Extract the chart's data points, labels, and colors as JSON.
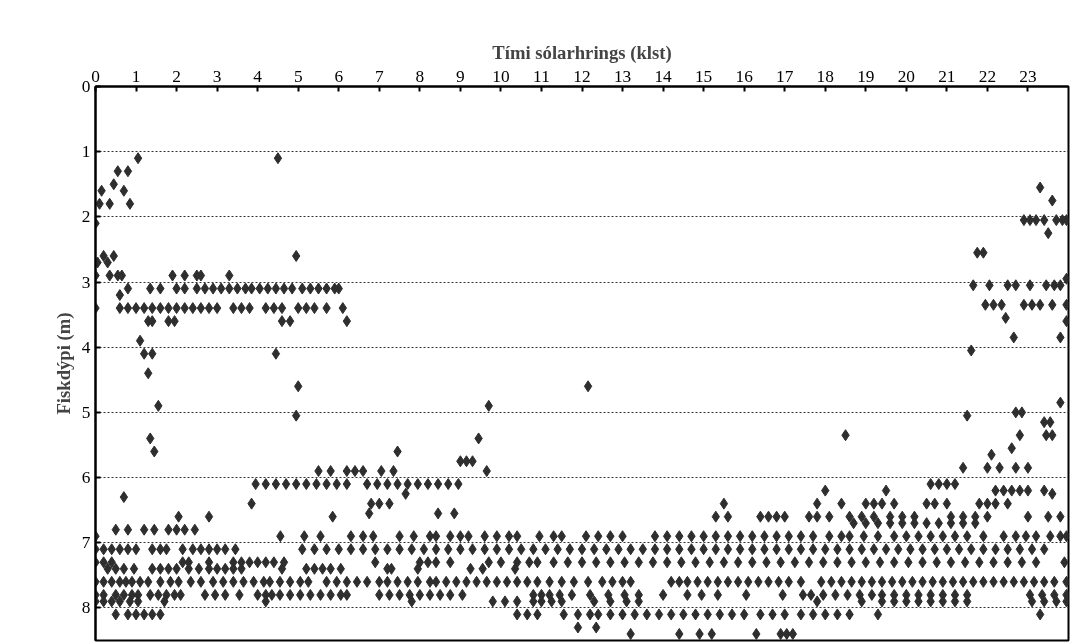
{
  "chart_data": {
    "type": "scatter",
    "xlabel": "Tími sólarhrings (klst)",
    "ylabel": "Fiskdýpi (m)",
    "xlim": [
      0,
      24
    ],
    "ylim": [
      8.5,
      0
    ],
    "xticks": [
      0,
      1,
      2,
      3,
      4,
      5,
      6,
      7,
      8,
      9,
      10,
      11,
      12,
      13,
      14,
      15,
      16,
      17,
      18,
      19,
      20,
      21,
      22,
      23
    ],
    "yticks": [
      0,
      1,
      2,
      3,
      4,
      5,
      6,
      7,
      8
    ],
    "grid": "y",
    "marker": "diamond",
    "series": [
      {
        "color": "#2e2e2e",
        "x": [
          0.1,
          0.15,
          0.35,
          0.45,
          0.55,
          0.7,
          0.8,
          0.85,
          1.05,
          0.0,
          0.05,
          0.2,
          0.3,
          0.45,
          0.0,
          0.6,
          0.8,
          0.0,
          1.1,
          1.2,
          1.4,
          1.3,
          4.5,
          4.95,
          4.45,
          5.0,
          1.55,
          1.35,
          1.45,
          4.95
        ],
        "values": [
          1.8,
          1.6,
          1.8,
          1.5,
          1.3,
          1.6,
          1.3,
          1.8,
          1.1,
          2.1,
          2.7,
          2.6,
          2.7,
          2.6,
          2.9,
          3.2,
          3.1,
          3.4,
          3.9,
          4.1,
          4.1,
          4.4,
          1.1,
          2.6,
          4.1,
          4.6,
          4.9,
          5.4,
          5.6,
          5.05
        ]
      },
      {
        "color": "#2e2e2e",
        "x": [
          23.3,
          23.6,
          22.9,
          23.05,
          23.2,
          23.4,
          23.7,
          23.85,
          23.95,
          23.5,
          21.75,
          21.9,
          21.65,
          22.05,
          22.5,
          22.7,
          23.05,
          23.45,
          23.65,
          23.8,
          21.95,
          22.15,
          22.35,
          22.9,
          23.1,
          23.3,
          23.6,
          23.95,
          22.45,
          23.95,
          23.95,
          22.65,
          23.8,
          21.6,
          12.15
        ],
        "values": [
          1.55,
          1.75,
          2.05,
          2.05,
          2.05,
          2.05,
          2.05,
          2.05,
          2.05,
          2.25,
          2.55,
          2.55,
          3.05,
          3.05,
          3.05,
          3.05,
          3.05,
          3.05,
          3.05,
          3.05,
          3.35,
          3.35,
          3.35,
          3.35,
          3.35,
          3.35,
          3.35,
          3.35,
          3.55,
          2.95,
          3.6,
          3.85,
          3.85,
          4.05,
          4.6
        ]
      },
      {
        "color": "#2e2e2e",
        "x": [
          21.5,
          23.8,
          22.7,
          22.85,
          23.4,
          23.55,
          23.45,
          23.6,
          22.8,
          18.5,
          22.6,
          22.1,
          21.4,
          22.0,
          22.3,
          22.7,
          23.0,
          23.6,
          7.45,
          9.7,
          9.45,
          9.0,
          9.15,
          9.3,
          9.65,
          0.7,
          3.85,
          2.05,
          2.8,
          5.85,
          6.75,
          8.45,
          8.85,
          7.65,
          15.5
        ],
        "values": [
          5.05,
          4.85,
          5.0,
          5.0,
          5.15,
          5.15,
          5.35,
          5.35,
          5.35,
          5.35,
          5.55,
          5.65,
          5.85,
          5.85,
          5.85,
          5.85,
          5.85,
          6.25,
          5.6,
          4.9,
          5.4,
          5.75,
          5.75,
          5.75,
          5.9,
          6.3,
          6.4,
          6.6,
          6.6,
          6.6,
          6.55,
          6.55,
          6.55,
          6.25,
          6.4
        ]
      },
      {
        "color": "#2e2e2e",
        "x": [
          0.35,
          0.55,
          0.65,
          1.9,
          2.2,
          2.5,
          2.6,
          3.3
        ],
        "values": [
          2.9,
          2.9,
          2.9,
          2.9,
          2.9,
          2.9,
          2.9,
          2.9
        ]
      },
      {
        "color": "#2e2e2e",
        "x": [
          1.35,
          1.6,
          2.0,
          2.2,
          2.5,
          2.7,
          2.9,
          3.1,
          3.3,
          3.5,
          3.7,
          3.85,
          4.05,
          4.25,
          4.45,
          4.65,
          4.85,
          5.1,
          5.3,
          5.5,
          5.7,
          5.9,
          6.0
        ],
        "values": [
          3.1,
          3.1,
          3.1,
          3.1,
          3.1,
          3.1,
          3.1,
          3.1,
          3.1,
          3.1,
          3.1,
          3.1,
          3.1,
          3.1,
          3.1,
          3.1,
          3.1,
          3.1,
          3.1,
          3.1,
          3.1,
          3.1,
          3.1
        ]
      },
      {
        "color": "#2e2e2e",
        "x": [
          0.6,
          0.8,
          1.0,
          1.2,
          1.4,
          1.6,
          1.8,
          2.0,
          2.2,
          2.4,
          2.6,
          2.8,
          3.0,
          3.4,
          3.6,
          3.8,
          4.2,
          4.4,
          4.6,
          5.0,
          5.2,
          5.4,
          5.7,
          6.1
        ],
        "values": [
          3.4,
          3.4,
          3.4,
          3.4,
          3.4,
          3.4,
          3.4,
          3.4,
          3.4,
          3.4,
          3.4,
          3.4,
          3.4,
          3.4,
          3.4,
          3.4,
          3.4,
          3.4,
          3.4,
          3.4,
          3.4,
          3.4,
          3.4,
          3.4
        ]
      },
      {
        "color": "#2e2e2e",
        "x": [
          1.3,
          1.4,
          1.8,
          1.95,
          4.6,
          4.8,
          6.2
        ],
        "values": [
          3.6,
          3.6,
          3.6,
          3.6,
          3.6,
          3.6,
          3.6
        ]
      },
      {
        "color": "#2e2e2e",
        "x": [
          5.5,
          5.8,
          6.2,
          6.4,
          6.6,
          7.05,
          7.35
        ],
        "values": [
          5.9,
          5.9,
          5.9,
          5.9,
          5.9,
          5.9,
          5.9
        ]
      },
      {
        "color": "#2e2e2e",
        "x": [
          3.95,
          4.2,
          4.45,
          4.7,
          4.95,
          5.2,
          5.45,
          5.7,
          5.95,
          6.2,
          6.7,
          6.95,
          7.2,
          7.45,
          7.7,
          7.95,
          8.2,
          8.45,
          8.7,
          8.95,
          20.6,
          20.8,
          21.0,
          21.2
        ],
        "values": [
          6.1,
          6.1,
          6.1,
          6.1,
          6.1,
          6.1,
          6.1,
          6.1,
          6.1,
          6.1,
          6.1,
          6.1,
          6.1,
          6.1,
          6.1,
          6.1,
          6.1,
          6.1,
          6.1,
          6.1,
          6.1,
          6.1,
          6.1,
          6.1
        ]
      },
      {
        "color": "#2e2e2e",
        "x": [
          22.2,
          22.4,
          22.6,
          22.8,
          23.0,
          23.4,
          18.0,
          19.5
        ],
        "values": [
          6.2,
          6.2,
          6.2,
          6.2,
          6.2,
          6.2,
          6.2,
          6.2
        ]
      },
      {
        "color": "#2e2e2e",
        "x": [
          6.8,
          7.0,
          7.25,
          17.8,
          18.4,
          19.0,
          19.2,
          19.4,
          19.7,
          20.5,
          20.7,
          21.0,
          21.8,
          22.0,
          22.2,
          22.5
        ],
        "values": [
          6.4,
          6.4,
          6.4,
          6.4,
          6.4,
          6.4,
          6.4,
          6.4,
          6.4,
          6.4,
          6.4,
          6.4,
          6.4,
          6.4,
          6.4,
          6.4
        ]
      },
      {
        "color": "#2e2e2e",
        "x": [
          15.3,
          15.6,
          16.4,
          16.6,
          16.8,
          17.0,
          17.6,
          17.8,
          18.1,
          18.6,
          18.9,
          19.2,
          19.6,
          19.9,
          20.2,
          21.1,
          21.4,
          21.7,
          22.0,
          23.0,
          23.5,
          23.8
        ],
        "values": [
          6.6,
          6.6,
          6.6,
          6.6,
          6.6,
          6.6,
          6.6,
          6.6,
          6.6,
          6.6,
          6.6,
          6.6,
          6.6,
          6.6,
          6.6,
          6.6,
          6.6,
          6.6,
          6.6,
          6.6,
          6.6,
          6.6
        ]
      },
      {
        "color": "#2e2e2e",
        "x": [
          18.7,
          19.0,
          19.3,
          19.6,
          19.9,
          20.2,
          20.5,
          20.8,
          21.1,
          21.4,
          21.7
        ],
        "values": [
          6.7,
          6.7,
          6.7,
          6.7,
          6.7,
          6.7,
          6.7,
          6.7,
          6.7,
          6.7,
          6.7
        ]
      },
      {
        "color": "#2e2e2e",
        "x": [
          0.5,
          0.8,
          1.2,
          1.45,
          1.8,
          2.0,
          2.2,
          2.45
        ],
        "values": [
          6.8,
          6.8,
          6.8,
          6.8,
          6.8,
          6.8,
          6.8,
          6.8
        ]
      },
      {
        "color": "#2e2e2e",
        "x": [
          0.0,
          4.56,
          5.15,
          5.55,
          6.3,
          6.6,
          6.85,
          7.5,
          7.85,
          8.25,
          8.4,
          8.75,
          9.0,
          9.2,
          9.6,
          9.9,
          10.2,
          10.4,
          10.95,
          11.3,
          11.5,
          12.1,
          12.4,
          12.7,
          13.0,
          13.8,
          14.1,
          14.4,
          14.7,
          15.0,
          15.3,
          15.6,
          15.9,
          16.2,
          16.5,
          16.8,
          17.1,
          17.4,
          17.7,
          18.1,
          18.4,
          18.6,
          18.95,
          19.3,
          19.7,
          20.0,
          20.3,
          20.6,
          20.9,
          21.2,
          21.5,
          21.9,
          22.4,
          22.7,
          22.95,
          23.2,
          23.55,
          23.8,
          23.95
        ],
        "values": [
          6.9,
          6.9,
          6.9,
          6.9,
          6.9,
          6.9,
          6.9,
          6.9,
          6.9,
          6.9,
          6.9,
          6.9,
          6.9,
          6.9,
          6.9,
          6.9,
          6.9,
          6.9,
          6.9,
          6.9,
          6.9,
          6.9,
          6.9,
          6.9,
          6.9,
          6.9,
          6.9,
          6.9,
          6.9,
          6.9,
          6.9,
          6.9,
          6.9,
          6.9,
          6.9,
          6.9,
          6.9,
          6.9,
          6.9,
          6.9,
          6.9,
          6.9,
          6.9,
          6.9,
          6.9,
          6.9,
          6.9,
          6.9,
          6.9,
          6.9,
          6.9,
          6.9,
          6.9,
          6.9,
          6.9,
          6.9,
          6.9,
          6.9,
          6.9
        ]
      },
      {
        "color": "#2e2e2e",
        "x": [
          0.0,
          0.2,
          0.4,
          0.6,
          0.8,
          1.0,
          1.4,
          1.6,
          1.75,
          2.15,
          2.4,
          2.6,
          2.8,
          3.0,
          3.2,
          3.45,
          5.1,
          5.4,
          5.7,
          6.0,
          6.3,
          6.6,
          6.9,
          7.2,
          7.5,
          7.8,
          8.1,
          8.4,
          8.7,
          9.0,
          9.3,
          9.6,
          9.9,
          10.2,
          10.5,
          10.8,
          11.1,
          11.4,
          11.7,
          12.0,
          12.3,
          12.6,
          12.9,
          13.2,
          13.5,
          13.8,
          14.1,
          14.4,
          14.7,
          15.0,
          15.3,
          15.6,
          15.9,
          16.2,
          16.5,
          16.8,
          17.1,
          17.4,
          17.7,
          18.0,
          18.3,
          18.6,
          18.9,
          19.2,
          19.5,
          19.8,
          20.1,
          20.4,
          20.7,
          21.0,
          21.3,
          21.6,
          21.9,
          22.2,
          22.5,
          22.8,
          23.1,
          23.4
        ],
        "values": [
          7.1,
          7.1,
          7.1,
          7.1,
          7.1,
          7.1,
          7.1,
          7.1,
          7.1,
          7.1,
          7.1,
          7.1,
          7.1,
          7.1,
          7.1,
          7.1,
          7.1,
          7.1,
          7.1,
          7.1,
          7.1,
          7.1,
          7.1,
          7.1,
          7.1,
          7.1,
          7.1,
          7.1,
          7.1,
          7.1,
          7.1,
          7.1,
          7.1,
          7.1,
          7.1,
          7.1,
          7.1,
          7.1,
          7.1,
          7.1,
          7.1,
          7.1,
          7.1,
          7.1,
          7.1,
          7.1,
          7.1,
          7.1,
          7.1,
          7.1,
          7.1,
          7.1,
          7.1,
          7.1,
          7.1,
          7.1,
          7.1,
          7.1,
          7.1,
          7.1,
          7.1,
          7.1,
          7.1,
          7.1,
          7.1,
          7.1,
          7.1,
          7.1,
          7.1,
          7.1,
          7.1,
          7.1,
          7.1,
          7.1,
          7.1,
          7.1,
          7.1,
          7.1
        ]
      },
      {
        "color": "#2e2e2e",
        "x": [
          0.0,
          0.2,
          0.4,
          2.15,
          2.3,
          2.8,
          3.4,
          3.6,
          3.8,
          4.0,
          4.2,
          4.4,
          4.65,
          6.9,
          8.0,
          8.2,
          8.4,
          8.75,
          9.7,
          10.0,
          10.4,
          10.7,
          10.9,
          11.3,
          11.65,
          12.0,
          12.35,
          12.7,
          13.05,
          13.4,
          13.75,
          14.1,
          14.45,
          14.8,
          15.15,
          15.5,
          15.85,
          16.2,
          16.55,
          16.9,
          17.25,
          17.6,
          17.95,
          18.3,
          18.65,
          19.0,
          19.35,
          19.7,
          20.05,
          20.4,
          20.75,
          21.1,
          21.45,
          21.8,
          22.15,
          22.5,
          22.85,
          23.2,
          23.9
        ],
        "values": [
          7.3,
          7.3,
          7.3,
          7.3,
          7.3,
          7.3,
          7.3,
          7.3,
          7.3,
          7.3,
          7.3,
          7.3,
          7.3,
          7.3,
          7.3,
          7.3,
          7.3,
          7.3,
          7.3,
          7.3,
          7.3,
          7.3,
          7.3,
          7.3,
          7.3,
          7.3,
          7.3,
          7.3,
          7.3,
          7.3,
          7.3,
          7.3,
          7.3,
          7.3,
          7.3,
          7.3,
          7.3,
          7.3,
          7.3,
          7.3,
          7.3,
          7.3,
          7.3,
          7.3,
          7.3,
          7.3,
          7.3,
          7.3,
          7.3,
          7.3,
          7.3,
          7.3,
          7.3,
          7.3,
          7.3,
          7.3,
          7.3,
          7.3,
          7.3
        ]
      },
      {
        "color": "#2e2e2e",
        "x": [
          0.3,
          0.5,
          0.7,
          0.95,
          1.4,
          1.6,
          1.8,
          2.0,
          2.3,
          2.55,
          2.8,
          3.0,
          3.2,
          3.4,
          3.6,
          4.6,
          5.2,
          5.4,
          5.6,
          5.8,
          6.05,
          7.2,
          7.3,
          7.95,
          9.25,
          9.55,
          10.35
        ],
        "values": [
          7.4,
          7.4,
          7.4,
          7.4,
          7.4,
          7.4,
          7.4,
          7.4,
          7.4,
          7.4,
          7.4,
          7.4,
          7.4,
          7.4,
          7.4,
          7.4,
          7.4,
          7.4,
          7.4,
          7.4,
          7.4,
          7.4,
          7.4,
          7.4,
          7.4,
          7.4,
          7.4
        ]
      },
      {
        "color": "#2e2e2e",
        "x": [
          0.0,
          0.2,
          0.4,
          0.6,
          0.75,
          0.9,
          1.1,
          1.3,
          1.6,
          1.85,
          2.05,
          2.35,
          2.6,
          2.9,
          3.15,
          3.4,
          3.65,
          3.9,
          4.15,
          4.3,
          4.55,
          4.8,
          5.05,
          5.25,
          5.7,
          5.95,
          6.2,
          6.45,
          6.7,
          7.0,
          7.2,
          7.45,
          7.7,
          7.95,
          8.25,
          8.4,
          8.65,
          8.9,
          9.15,
          9.4,
          9.65,
          9.9,
          10.15,
          10.4,
          10.65,
          10.9,
          11.2,
          11.5,
          11.8,
          12.15,
          12.5,
          12.75,
          13.0,
          13.2,
          14.2,
          14.4,
          14.6,
          14.85,
          15.1,
          15.35,
          15.6,
          15.85,
          16.1,
          16.35,
          16.6,
          16.85,
          17.1,
          17.4,
          17.9,
          18.15,
          18.4,
          18.65,
          18.9,
          19.15,
          19.4,
          19.65,
          19.9,
          20.15,
          20.4,
          20.65,
          20.9,
          21.15,
          21.4,
          21.65,
          21.9,
          22.15,
          22.4,
          22.65,
          22.9,
          23.15,
          23.4,
          23.65,
          23.95
        ],
        "values": [
          7.6,
          7.6,
          7.6,
          7.6,
          7.6,
          7.6,
          7.6,
          7.6,
          7.6,
          7.6,
          7.6,
          7.6,
          7.6,
          7.6,
          7.6,
          7.6,
          7.6,
          7.6,
          7.6,
          7.6,
          7.6,
          7.6,
          7.6,
          7.6,
          7.6,
          7.6,
          7.6,
          7.6,
          7.6,
          7.6,
          7.6,
          7.6,
          7.6,
          7.6,
          7.6,
          7.6,
          7.6,
          7.6,
          7.6,
          7.6,
          7.6,
          7.6,
          7.6,
          7.6,
          7.6,
          7.6,
          7.6,
          7.6,
          7.6,
          7.6,
          7.6,
          7.6,
          7.6,
          7.6,
          7.6,
          7.6,
          7.6,
          7.6,
          7.6,
          7.6,
          7.6,
          7.6,
          7.6,
          7.6,
          7.6,
          7.6,
          7.6,
          7.6,
          7.6,
          7.6,
          7.6,
          7.6,
          7.6,
          7.6,
          7.6,
          7.6,
          7.6,
          7.6,
          7.6,
          7.6,
          7.6,
          7.6,
          7.6,
          7.6,
          7.6,
          7.6,
          7.6,
          7.6,
          7.6,
          7.6,
          7.6,
          7.6,
          7.6
        ]
      },
      {
        "color": "#2e2e2e",
        "x": [
          0.0,
          0.2,
          0.5,
          0.7,
          0.9,
          1.05,
          1.35,
          1.55,
          1.75,
          1.95,
          2.1,
          2.7,
          2.95,
          3.2,
          3.55,
          4.0,
          4.2,
          4.35,
          4.55,
          4.8,
          5.05,
          5.3,
          5.55,
          5.8,
          6.05,
          6.2,
          7.0,
          7.25,
          7.5,
          7.75,
          8.0,
          8.25,
          8.5,
          8.75,
          9.05,
          10.8,
          11.0,
          11.2,
          11.45,
          11.75,
          12.2,
          12.65,
          13.05,
          13.4,
          14.0,
          14.6,
          14.95,
          15.35,
          16.05,
          16.95,
          17.45,
          17.65,
          17.95,
          18.25,
          18.55,
          18.85,
          19.15,
          19.4,
          19.7,
          20.0,
          20.3,
          20.6,
          20.9,
          21.2,
          21.5,
          23.05,
          23.35,
          23.65,
          23.95
        ],
        "values": [
          7.8,
          7.8,
          7.8,
          7.8,
          7.8,
          7.8,
          7.8,
          7.8,
          7.8,
          7.8,
          7.8,
          7.8,
          7.8,
          7.8,
          7.8,
          7.8,
          7.8,
          7.8,
          7.8,
          7.8,
          7.8,
          7.8,
          7.8,
          7.8,
          7.8,
          7.8,
          7.8,
          7.8,
          7.8,
          7.8,
          7.8,
          7.8,
          7.8,
          7.8,
          7.8,
          7.8,
          7.8,
          7.8,
          7.8,
          7.8,
          7.8,
          7.8,
          7.8,
          7.8,
          7.8,
          7.8,
          7.8,
          7.8,
          7.8,
          7.8,
          7.8,
          7.8,
          7.8,
          7.8,
          7.8,
          7.8,
          7.8,
          7.8,
          7.8,
          7.8,
          7.8,
          7.8,
          7.8,
          7.8,
          7.8,
          7.8,
          7.8,
          7.8,
          7.8
        ]
      },
      {
        "color": "#2e2e2e",
        "x": [
          0.0,
          0.2,
          0.4,
          0.6,
          0.85,
          1.05,
          1.7,
          4.2,
          7.8,
          9.8,
          10.1,
          10.4,
          10.8,
          11.0,
          11.25,
          11.5,
          12.3,
          12.7,
          13.1,
          13.4,
          17.8,
          18.9,
          19.4,
          19.7,
          20.0,
          20.3,
          20.6,
          20.9,
          21.2,
          21.5,
          23.1,
          23.4,
          23.7,
          23.95
        ],
        "values": [
          7.9,
          7.9,
          7.9,
          7.9,
          7.9,
          7.9,
          7.9,
          7.9,
          7.9,
          7.9,
          7.9,
          7.9,
          7.9,
          7.9,
          7.9,
          7.9,
          7.9,
          7.9,
          7.9,
          7.9,
          7.9,
          7.9,
          7.9,
          7.9,
          7.9,
          7.9,
          7.9,
          7.9,
          7.9,
          7.9,
          7.9,
          7.9,
          7.9,
          7.9
        ]
      },
      {
        "color": "#2e2e2e",
        "x": [
          0.5,
          0.8,
          1.0,
          1.2,
          1.4,
          1.6,
          10.4,
          10.65,
          10.9,
          11.55,
          11.9,
          12.2,
          12.4,
          12.7,
          13.0,
          13.3,
          13.6,
          13.9,
          14.2,
          14.5,
          14.8,
          15.1,
          15.4,
          15.7,
          16.0,
          16.4,
          16.7,
          17.0,
          17.4,
          17.7,
          18.0,
          18.3,
          18.6,
          19.3,
          23.3
        ],
        "values": [
          8.1,
          8.1,
          8.1,
          8.1,
          8.1,
          8.1,
          8.1,
          8.1,
          8.1,
          8.1,
          8.1,
          8.1,
          8.1,
          8.1,
          8.1,
          8.1,
          8.1,
          8.1,
          8.1,
          8.1,
          8.1,
          8.1,
          8.1,
          8.1,
          8.1,
          8.1,
          8.1,
          8.1,
          8.1,
          8.1,
          8.1,
          8.1,
          8.1,
          8.1,
          8.1
        ]
      },
      {
        "color": "#2e2e2e",
        "x": [
          11.9,
          12.35
        ],
        "values": [
          8.3,
          8.3
        ]
      },
      {
        "color": "#2e2e2e",
        "x": [
          13.2,
          14.4,
          14.9,
          15.2,
          16.3,
          16.9,
          17.05,
          17.2
        ],
        "values": [
          8.4,
          8.4,
          8.4,
          8.4,
          8.4,
          8.4,
          8.4,
          8.4
        ]
      }
    ]
  }
}
